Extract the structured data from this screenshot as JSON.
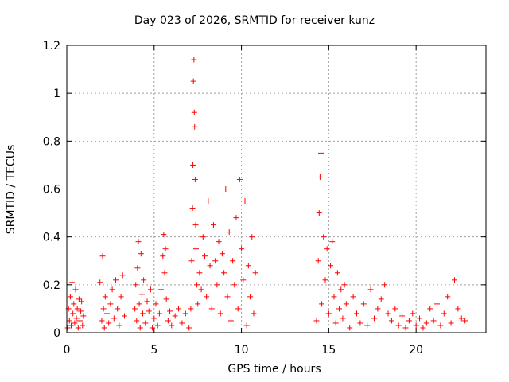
{
  "chart_data": {
    "type": "scatter",
    "title": "Day 023 of 2026, SRMTID for receiver kunz",
    "xlabel": "GPS time / hours",
    "ylabel": "SRMTID / TECUs",
    "xlim": [
      0,
      24
    ],
    "ylim": [
      0,
      1.2
    ],
    "xticks": [
      0,
      5,
      10,
      15,
      20
    ],
    "yticks": [
      0,
      0.2,
      0.4,
      0.6,
      0.8,
      1,
      1.2
    ],
    "ytick_labels": [
      "0",
      "0.2",
      "0.4",
      "0.6",
      "0.8",
      "1",
      "1.2"
    ],
    "grid": true,
    "marker": "+",
    "color": "#ff0000",
    "series": [
      {
        "name": "SRMTID",
        "points": [
          [
            0.05,
            0.02
          ],
          [
            0.1,
            0.1
          ],
          [
            0.15,
            0.05
          ],
          [
            0.2,
            0.15
          ],
          [
            0.25,
            0.03
          ],
          [
            0.3,
            0.21
          ],
          [
            0.35,
            0.08
          ],
          [
            0.4,
            0.12
          ],
          [
            0.45,
            0.04
          ],
          [
            0.5,
            0.18
          ],
          [
            0.55,
            0.06
          ],
          [
            0.6,
            0.1
          ],
          [
            0.65,
            0.02
          ],
          [
            0.7,
            0.14
          ],
          [
            0.75,
            0.05
          ],
          [
            0.8,
            0.09
          ],
          [
            0.85,
            0.13
          ],
          [
            0.9,
            0.03
          ],
          [
            0.95,
            0.07
          ],
          [
            1.9,
            0.21
          ],
          [
            2.0,
            0.05
          ],
          [
            2.05,
            0.32
          ],
          [
            2.1,
            0.1
          ],
          [
            2.15,
            0.02
          ],
          [
            2.2,
            0.15
          ],
          [
            2.3,
            0.08
          ],
          [
            2.4,
            0.04
          ],
          [
            2.5,
            0.12
          ],
          [
            2.6,
            0.18
          ],
          [
            2.7,
            0.06
          ],
          [
            2.8,
            0.22
          ],
          [
            2.9,
            0.1
          ],
          [
            3.0,
            0.03
          ],
          [
            3.1,
            0.15
          ],
          [
            3.2,
            0.24
          ],
          [
            3.3,
            0.07
          ],
          [
            3.9,
            0.1
          ],
          [
            3.95,
            0.2
          ],
          [
            4.0,
            0.05
          ],
          [
            4.05,
            0.27
          ],
          [
            4.1,
            0.38
          ],
          [
            4.15,
            0.12
          ],
          [
            4.2,
            0.02
          ],
          [
            4.25,
            0.33
          ],
          [
            4.3,
            0.16
          ],
          [
            4.35,
            0.08
          ],
          [
            4.4,
            0.22
          ],
          [
            4.5,
            0.04
          ],
          [
            4.6,
            0.13
          ],
          [
            4.7,
            0.09
          ],
          [
            4.8,
            0.18
          ],
          [
            4.9,
            0.02
          ],
          [
            5.0,
            0.06
          ],
          [
            5.1,
            0.12
          ],
          [
            5.2,
            0.03
          ],
          [
            5.3,
            0.08
          ],
          [
            5.4,
            0.18
          ],
          [
            5.5,
            0.32
          ],
          [
            5.55,
            0.41
          ],
          [
            5.6,
            0.25
          ],
          [
            5.65,
            0.35
          ],
          [
            5.7,
            0.14
          ],
          [
            5.8,
            0.05
          ],
          [
            5.9,
            0.09
          ],
          [
            6.0,
            0.03
          ],
          [
            6.2,
            0.07
          ],
          [
            6.4,
            0.1
          ],
          [
            6.6,
            0.04
          ],
          [
            6.8,
            0.08
          ],
          [
            7.0,
            0.02
          ],
          [
            7.1,
            0.1
          ],
          [
            7.15,
            0.3
          ],
          [
            7.2,
            0.52
          ],
          [
            7.22,
            0.7
          ],
          [
            7.25,
            1.05
          ],
          [
            7.28,
            1.14
          ],
          [
            7.3,
            0.92
          ],
          [
            7.32,
            0.86
          ],
          [
            7.35,
            0.64
          ],
          [
            7.38,
            0.45
          ],
          [
            7.4,
            0.35
          ],
          [
            7.45,
            0.2
          ],
          [
            7.5,
            0.12
          ],
          [
            7.6,
            0.25
          ],
          [
            7.7,
            0.18
          ],
          [
            7.8,
            0.4
          ],
          [
            7.9,
            0.32
          ],
          [
            8.0,
            0.15
          ],
          [
            8.1,
            0.55
          ],
          [
            8.2,
            0.28
          ],
          [
            8.3,
            0.1
          ],
          [
            8.4,
            0.45
          ],
          [
            8.5,
            0.3
          ],
          [
            8.6,
            0.2
          ],
          [
            8.7,
            0.38
          ],
          [
            8.8,
            0.08
          ],
          [
            8.9,
            0.33
          ],
          [
            9.0,
            0.25
          ],
          [
            9.1,
            0.6
          ],
          [
            9.2,
            0.15
          ],
          [
            9.3,
            0.42
          ],
          [
            9.4,
            0.05
          ],
          [
            9.5,
            0.3
          ],
          [
            9.6,
            0.2
          ],
          [
            9.7,
            0.48
          ],
          [
            9.8,
            0.1
          ],
          [
            9.9,
            0.64
          ],
          [
            10.0,
            0.35
          ],
          [
            10.1,
            0.22
          ],
          [
            10.2,
            0.55
          ],
          [
            10.3,
            0.03
          ],
          [
            10.4,
            0.28
          ],
          [
            10.5,
            0.15
          ],
          [
            10.6,
            0.4
          ],
          [
            10.7,
            0.08
          ],
          [
            10.8,
            0.25
          ],
          [
            14.3,
            0.05
          ],
          [
            14.4,
            0.3
          ],
          [
            14.45,
            0.5
          ],
          [
            14.5,
            0.65
          ],
          [
            14.55,
            0.75
          ],
          [
            14.6,
            0.12
          ],
          [
            14.7,
            0.4
          ],
          [
            14.8,
            0.22
          ],
          [
            14.9,
            0.35
          ],
          [
            15.0,
            0.08
          ],
          [
            15.1,
            0.28
          ],
          [
            15.2,
            0.38
          ],
          [
            15.3,
            0.15
          ],
          [
            15.4,
            0.04
          ],
          [
            15.5,
            0.25
          ],
          [
            15.6,
            0.1
          ],
          [
            15.7,
            0.18
          ],
          [
            15.8,
            0.06
          ],
          [
            15.9,
            0.2
          ],
          [
            16.0,
            0.12
          ],
          [
            16.2,
            0.02
          ],
          [
            16.4,
            0.15
          ],
          [
            16.6,
            0.08
          ],
          [
            16.8,
            0.04
          ],
          [
            17.0,
            0.12
          ],
          [
            17.2,
            0.03
          ],
          [
            17.4,
            0.18
          ],
          [
            17.6,
            0.06
          ],
          [
            17.8,
            0.1
          ],
          [
            18.0,
            0.14
          ],
          [
            18.2,
            0.2
          ],
          [
            18.4,
            0.08
          ],
          [
            18.6,
            0.05
          ],
          [
            18.8,
            0.1
          ],
          [
            19.0,
            0.03
          ],
          [
            19.2,
            0.07
          ],
          [
            19.4,
            0.02
          ],
          [
            19.6,
            0.05
          ],
          [
            19.8,
            0.08
          ],
          [
            20.0,
            0.03
          ],
          [
            20.2,
            0.06
          ],
          [
            20.4,
            0.02
          ],
          [
            20.6,
            0.04
          ],
          [
            20.8,
            0.1
          ],
          [
            21.0,
            0.05
          ],
          [
            21.2,
            0.12
          ],
          [
            21.4,
            0.03
          ],
          [
            21.6,
            0.08
          ],
          [
            21.8,
            0.15
          ],
          [
            22.0,
            0.04
          ],
          [
            22.2,
            0.22
          ],
          [
            22.4,
            0.1
          ],
          [
            22.6,
            0.06
          ],
          [
            22.8,
            0.05
          ]
        ]
      }
    ]
  }
}
